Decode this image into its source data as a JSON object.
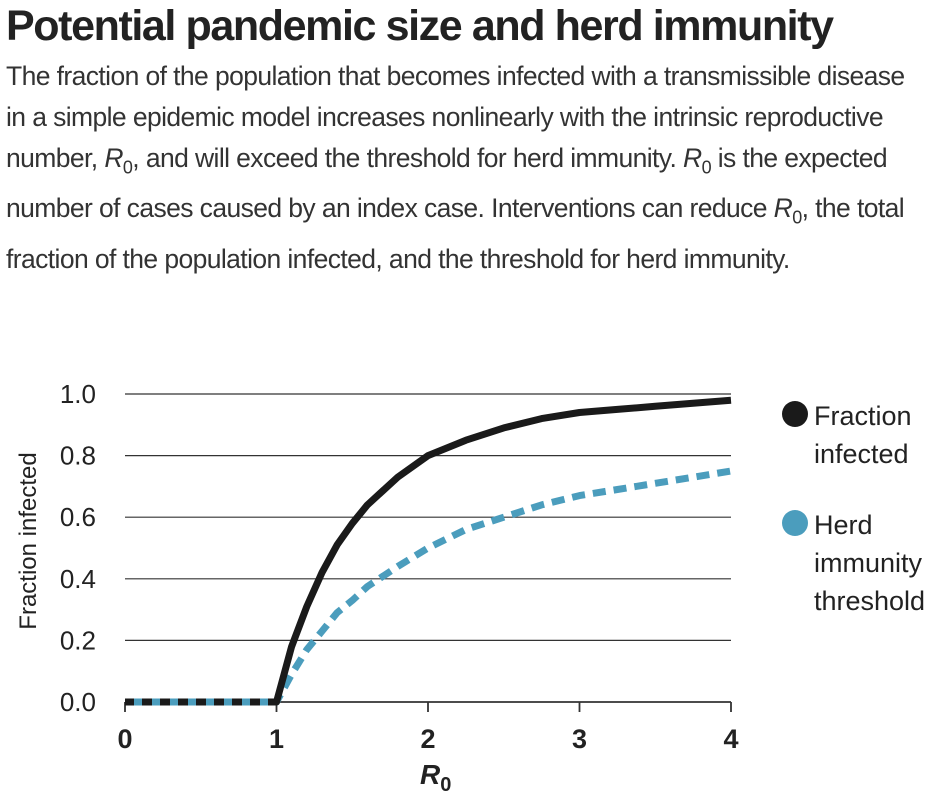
{
  "title": "Potential pandemic size and herd immunity",
  "description": {
    "part1": "The fraction of the population that becomes infected with a transmissible disease in a simple epidemic model increases nonlinearly with the intrinsic reproductive number, ",
    "r1_base": "R",
    "r1_sub": "0",
    "part2": ", and will exceed the threshold for herd immunity. ",
    "r2_base": "R",
    "r2_sub": "0",
    "part3": " is the expected number of cases caused by an index case. Interventions can reduce ",
    "r3_base": "R",
    "r3_sub": "0",
    "part4": ", the total fraction of the population infected, and the threshold for herd immunity."
  },
  "colors": {
    "fraction_infected": "#1a1a1a",
    "herd_threshold": "#4b9dbd",
    "grid": "#333333",
    "text": "#222222"
  },
  "chart_data": {
    "type": "line",
    "xlabel_base": "R",
    "xlabel_sub": "0",
    "ylabel": "Fraction infected",
    "xlim": [
      0,
      4
    ],
    "ylim": [
      0,
      1
    ],
    "xticks": [
      0,
      1,
      2,
      3,
      4
    ],
    "yticks": [
      0.0,
      0.2,
      0.4,
      0.6,
      0.8,
      1.0
    ],
    "ytick_labels": [
      "0.0",
      "0.2",
      "0.4",
      "0.6",
      "0.8",
      "1.0"
    ],
    "grid": "horizontal",
    "legend_placement": "right",
    "series": [
      {
        "name": "Fraction infected",
        "legend_lines": [
          "Fraction",
          "infected"
        ],
        "color": "#1a1a1a",
        "style": "solid",
        "x": [
          0,
          0.5,
          1.0,
          1.1,
          1.2,
          1.3,
          1.4,
          1.5,
          1.6,
          1.8,
          2.0,
          2.25,
          2.5,
          2.75,
          3.0,
          3.25,
          3.5,
          3.75,
          4.0
        ],
        "y": [
          0,
          0,
          0,
          0.18,
          0.31,
          0.42,
          0.51,
          0.58,
          0.64,
          0.73,
          0.8,
          0.85,
          0.89,
          0.92,
          0.94,
          0.95,
          0.96,
          0.97,
          0.98
        ]
      },
      {
        "name": "Herd immunity threshold",
        "legend_lines": [
          "Herd",
          "immunity",
          "threshold"
        ],
        "color": "#4b9dbd",
        "style": "dashed",
        "x": [
          0,
          0.5,
          1.0,
          1.1,
          1.2,
          1.3,
          1.4,
          1.5,
          1.6,
          1.8,
          2.0,
          2.25,
          2.5,
          2.75,
          3.0,
          3.25,
          3.5,
          3.75,
          4.0
        ],
        "y": [
          0,
          0,
          0,
          0.09,
          0.17,
          0.23,
          0.29,
          0.33,
          0.375,
          0.44,
          0.5,
          0.56,
          0.6,
          0.64,
          0.67,
          0.69,
          0.71,
          0.73,
          0.75
        ]
      }
    ]
  }
}
